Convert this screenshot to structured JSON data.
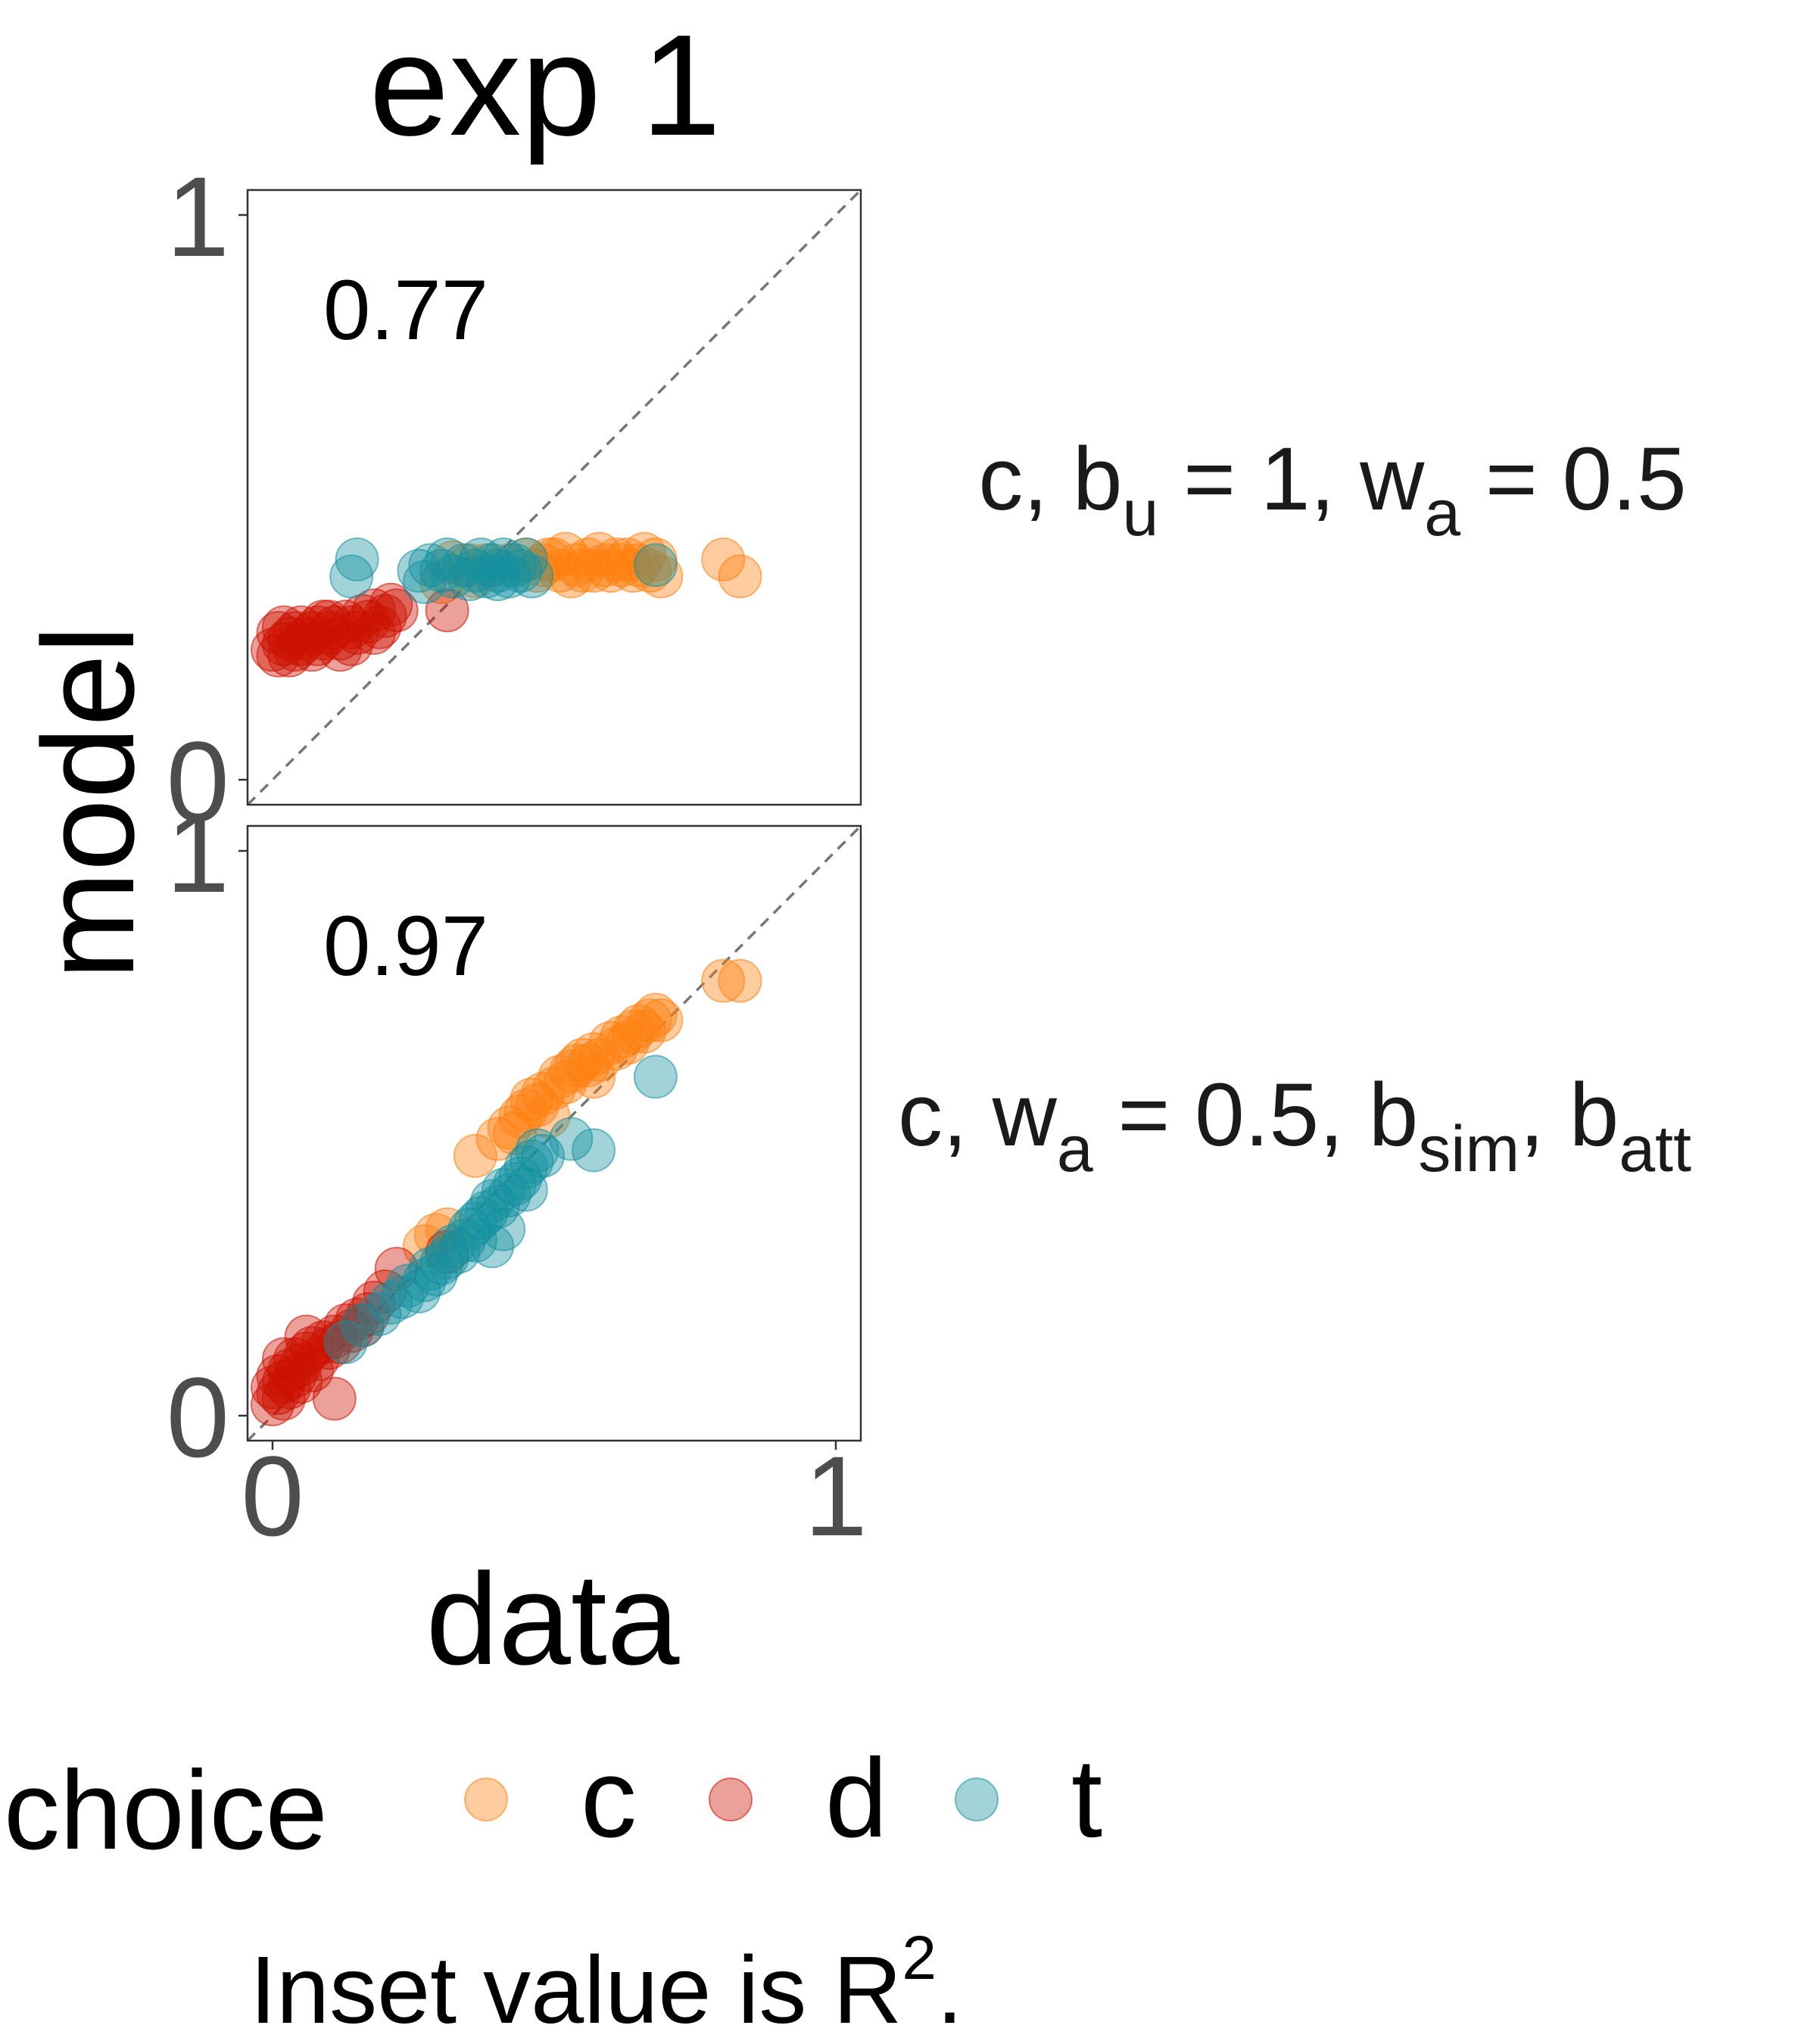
{
  "title": "exp 1",
  "xlabel": "data",
  "ylabel": "model",
  "caption": {
    "text": "Inset value is R",
    "sup": "2",
    "end": "."
  },
  "legend": {
    "title": "choice",
    "position": "bottom",
    "entries": [
      {
        "key": "c",
        "label": "c",
        "color": "#FF7F0E"
      },
      {
        "key": "d",
        "label": "d",
        "color": "#CC1100"
      },
      {
        "key": "t",
        "label": "t",
        "color": "#1490A0"
      }
    ]
  },
  "colors": {
    "c": "#FF7F0E",
    "d": "#CC1100",
    "t": "#1490A0",
    "panel_border": "#333333",
    "diagonal": "#777777",
    "tick_text": "#4D4D4D"
  },
  "chart_data": [
    {
      "type": "scatter",
      "panel": 1,
      "strip_label": {
        "parts": [
          {
            "t": "c, b"
          },
          {
            "t": "u",
            "sub": true
          },
          {
            "t": " = 1, w"
          },
          {
            "t": "a",
            "sub": true
          },
          {
            "t": " = 0.5"
          }
        ]
      },
      "inset": "0.77",
      "xlim": [
        0,
        1
      ],
      "ylim": [
        0,
        1
      ],
      "xticks": [
        "0",
        "1"
      ],
      "yticks": [
        "0",
        "1"
      ],
      "reference_line": "y = x",
      "grid": false,
      "series": [
        {
          "name": "c",
          "points": [
            [
              0.32,
              0.385
            ],
            [
              0.35,
              0.38
            ],
            [
              0.38,
              0.38
            ],
            [
              0.42,
              0.38
            ],
            [
              0.45,
              0.39
            ],
            [
              0.48,
              0.38
            ],
            [
              0.5,
              0.39
            ],
            [
              0.52,
              0.4
            ],
            [
              0.54,
              0.38
            ],
            [
              0.55,
              0.37
            ],
            [
              0.56,
              0.39
            ],
            [
              0.57,
              0.37
            ],
            [
              0.58,
              0.4
            ],
            [
              0.59,
              0.38
            ],
            [
              0.6,
              0.37
            ],
            [
              0.61,
              0.39
            ],
            [
              0.62,
              0.38
            ],
            [
              0.63,
              0.39
            ],
            [
              0.64,
              0.37
            ],
            [
              0.65,
              0.38
            ],
            [
              0.66,
              0.4
            ],
            [
              0.67,
              0.37
            ],
            [
              0.68,
              0.39
            ],
            [
              0.69,
              0.36
            ],
            [
              0.53,
              0.36
            ],
            [
              0.51,
              0.37
            ],
            [
              0.49,
              0.39
            ],
            [
              0.47,
              0.37
            ],
            [
              0.36,
              0.36
            ],
            [
              0.3,
              0.35
            ],
            [
              0.8,
              0.39
            ],
            [
              0.83,
              0.36
            ]
          ]
        },
        {
          "name": "d",
          "points": [
            [
              0.0,
              0.23
            ],
            [
              0.01,
              0.26
            ],
            [
              0.02,
              0.24
            ],
            [
              0.02,
              0.27
            ],
            [
              0.03,
              0.25
            ],
            [
              0.03,
              0.22
            ],
            [
              0.04,
              0.26
            ],
            [
              0.05,
              0.24
            ],
            [
              0.05,
              0.27
            ],
            [
              0.06,
              0.25
            ],
            [
              0.07,
              0.26
            ],
            [
              0.07,
              0.23
            ],
            [
              0.08,
              0.27
            ],
            [
              0.09,
              0.25
            ],
            [
              0.1,
              0.28
            ],
            [
              0.1,
              0.26
            ],
            [
              0.11,
              0.27
            ],
            [
              0.12,
              0.25
            ],
            [
              0.13,
              0.28
            ],
            [
              0.14,
              0.27
            ],
            [
              0.15,
              0.26
            ],
            [
              0.16,
              0.29
            ],
            [
              0.17,
              0.28
            ],
            [
              0.18,
              0.3
            ],
            [
              0.19,
              0.27
            ],
            [
              0.2,
              0.29
            ],
            [
              0.21,
              0.31
            ],
            [
              0.22,
              0.3
            ],
            [
              0.01,
              0.22
            ],
            [
              0.04,
              0.23
            ],
            [
              0.08,
              0.24
            ],
            [
              0.12,
              0.23
            ],
            [
              0.31,
              0.3
            ],
            [
              0.09,
              0.28
            ],
            [
              0.14,
              0.24
            ],
            [
              0.18,
              0.26
            ]
          ]
        },
        {
          "name": "t",
          "points": [
            [
              0.14,
              0.36
            ],
            [
              0.15,
              0.39
            ],
            [
              0.26,
              0.37
            ],
            [
              0.28,
              0.38
            ],
            [
              0.3,
              0.37
            ],
            [
              0.32,
              0.36
            ],
            [
              0.34,
              0.38
            ],
            [
              0.36,
              0.37
            ],
            [
              0.37,
              0.39
            ],
            [
              0.38,
              0.36
            ],
            [
              0.39,
              0.38
            ],
            [
              0.4,
              0.37
            ],
            [
              0.41,
              0.39
            ],
            [
              0.42,
              0.36
            ],
            [
              0.43,
              0.38
            ],
            [
              0.44,
              0.37
            ],
            [
              0.45,
              0.39
            ],
            [
              0.46,
              0.36
            ],
            [
              0.27,
              0.35
            ],
            [
              0.31,
              0.39
            ],
            [
              0.35,
              0.355
            ],
            [
              0.4,
              0.355
            ],
            [
              0.68,
              0.38
            ]
          ]
        }
      ]
    },
    {
      "type": "scatter",
      "panel": 2,
      "strip_label": {
        "parts": [
          {
            "t": "c, w"
          },
          {
            "t": "a",
            "sub": true
          },
          {
            "t": " = 0.5, b"
          },
          {
            "t": "sim",
            "sub": true
          },
          {
            "t": ", b"
          },
          {
            "t": "att",
            "sub": true
          }
        ]
      },
      "inset": "0.97",
      "xlim": [
        0,
        1
      ],
      "ylim": [
        0,
        1
      ],
      "xticks": [
        "0",
        "1"
      ],
      "yticks": [
        "0",
        "1"
      ],
      "reference_line": "y = x",
      "grid": false,
      "series": [
        {
          "name": "c",
          "points": [
            [
              0.27,
              0.3
            ],
            [
              0.29,
              0.32
            ],
            [
              0.31,
              0.33
            ],
            [
              0.36,
              0.46
            ],
            [
              0.4,
              0.49
            ],
            [
              0.42,
              0.51
            ],
            [
              0.44,
              0.53
            ],
            [
              0.45,
              0.54
            ],
            [
              0.46,
              0.56
            ],
            [
              0.47,
              0.55
            ],
            [
              0.48,
              0.57
            ],
            [
              0.5,
              0.58
            ],
            [
              0.51,
              0.6
            ],
            [
              0.52,
              0.59
            ],
            [
              0.53,
              0.61
            ],
            [
              0.54,
              0.62
            ],
            [
              0.55,
              0.63
            ],
            [
              0.56,
              0.62
            ],
            [
              0.57,
              0.64
            ],
            [
              0.58,
              0.63
            ],
            [
              0.6,
              0.66
            ],
            [
              0.61,
              0.65
            ],
            [
              0.62,
              0.67
            ],
            [
              0.63,
              0.66
            ],
            [
              0.64,
              0.68
            ],
            [
              0.65,
              0.69
            ],
            [
              0.66,
              0.68
            ],
            [
              0.67,
              0.7
            ],
            [
              0.68,
              0.71
            ],
            [
              0.69,
              0.7
            ],
            [
              0.8,
              0.77
            ],
            [
              0.83,
              0.77
            ],
            [
              0.43,
              0.5
            ],
            [
              0.49,
              0.53
            ],
            [
              0.57,
              0.6
            ]
          ]
        },
        {
          "name": "d",
          "points": [
            [
              0.0,
              0.02
            ],
            [
              0.0,
              0.05
            ],
            [
              0.01,
              0.04
            ],
            [
              0.01,
              0.07
            ],
            [
              0.02,
              0.03
            ],
            [
              0.02,
              0.06
            ],
            [
              0.03,
              0.08
            ],
            [
              0.03,
              0.05
            ],
            [
              0.04,
              0.07
            ],
            [
              0.04,
              0.1
            ],
            [
              0.05,
              0.06
            ],
            [
              0.05,
              0.09
            ],
            [
              0.06,
              0.11
            ],
            [
              0.07,
              0.08
            ],
            [
              0.07,
              0.12
            ],
            [
              0.08,
              0.1
            ],
            [
              0.09,
              0.13
            ],
            [
              0.1,
              0.12
            ],
            [
              0.11,
              0.14
            ],
            [
              0.12,
              0.13
            ],
            [
              0.13,
              0.16
            ],
            [
              0.14,
              0.15
            ],
            [
              0.15,
              0.17
            ],
            [
              0.16,
              0.16
            ],
            [
              0.17,
              0.18
            ],
            [
              0.18,
              0.2
            ],
            [
              0.2,
              0.22
            ],
            [
              0.22,
              0.26
            ],
            [
              0.31,
              0.29
            ],
            [
              0.11,
              0.03
            ],
            [
              0.06,
              0.14
            ],
            [
              0.02,
              0.1
            ]
          ]
        },
        {
          "name": "t",
          "points": [
            [
              0.13,
              0.13
            ],
            [
              0.16,
              0.16
            ],
            [
              0.19,
              0.18
            ],
            [
              0.21,
              0.2
            ],
            [
              0.23,
              0.21
            ],
            [
              0.24,
              0.23
            ],
            [
              0.26,
              0.22
            ],
            [
              0.27,
              0.24
            ],
            [
              0.28,
              0.26
            ],
            [
              0.29,
              0.25
            ],
            [
              0.3,
              0.27
            ],
            [
              0.31,
              0.28
            ],
            [
              0.32,
              0.3
            ],
            [
              0.33,
              0.29
            ],
            [
              0.34,
              0.31
            ],
            [
              0.35,
              0.33
            ],
            [
              0.36,
              0.34
            ],
            [
              0.37,
              0.35
            ],
            [
              0.38,
              0.36
            ],
            [
              0.39,
              0.38
            ],
            [
              0.4,
              0.37
            ],
            [
              0.41,
              0.4
            ],
            [
              0.42,
              0.39
            ],
            [
              0.43,
              0.41
            ],
            [
              0.44,
              0.42
            ],
            [
              0.45,
              0.44
            ],
            [
              0.46,
              0.45
            ],
            [
              0.47,
              0.47
            ],
            [
              0.48,
              0.46
            ],
            [
              0.53,
              0.49
            ],
            [
              0.57,
              0.47
            ],
            [
              0.68,
              0.6
            ],
            [
              0.39,
              0.3
            ],
            [
              0.41,
              0.33
            ],
            [
              0.36,
              0.31
            ],
            [
              0.45,
              0.4
            ]
          ]
        }
      ]
    }
  ]
}
